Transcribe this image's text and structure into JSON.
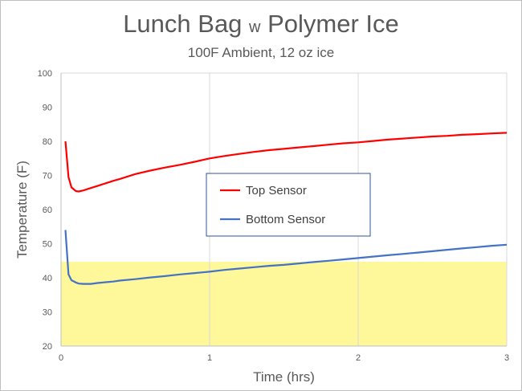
{
  "chart_data": {
    "type": "line",
    "title_main": "Lunch Bag",
    "title_small": "w",
    "title_end": "Polymer Ice",
    "subtitle": "100F Ambient, 12 oz ice",
    "xlabel": "Time (hrs)",
    "ylabel": "Temperature (F)",
    "xlim": [
      0,
      3
    ],
    "ylim": [
      20,
      100
    ],
    "x_ticks": [
      0,
      1,
      2,
      3
    ],
    "y_ticks": [
      20,
      30,
      40,
      50,
      60,
      70,
      80,
      90,
      100
    ],
    "grid": "vertical lines at x ticks",
    "shaded_band": {
      "y_from": 20,
      "y_to": 44.7,
      "color": "#fef89a"
    },
    "legend_position": "center",
    "series": [
      {
        "name": "Top Sensor",
        "color": "#ff0000",
        "x": [
          0.03,
          0.05,
          0.07,
          0.1,
          0.12,
          0.15,
          0.2,
          0.25,
          0.3,
          0.35,
          0.4,
          0.5,
          0.6,
          0.7,
          0.8,
          0.9,
          1.0,
          1.1,
          1.2,
          1.3,
          1.4,
          1.5,
          1.6,
          1.7,
          1.8,
          1.9,
          2.0,
          2.1,
          2.2,
          2.3,
          2.4,
          2.5,
          2.6,
          2.7,
          2.8,
          2.9,
          3.0
        ],
        "y": [
          80,
          69.5,
          66.5,
          65.4,
          65.3,
          65.6,
          66.3,
          67,
          67.7,
          68.4,
          69,
          70.4,
          71.4,
          72.3,
          73.1,
          74,
          75,
          75.7,
          76.3,
          76.9,
          77.4,
          77.8,
          78.2,
          78.6,
          79,
          79.4,
          79.7,
          80.1,
          80.5,
          80.8,
          81.1,
          81.4,
          81.6,
          81.9,
          82.1,
          82.3,
          82.5
        ]
      },
      {
        "name": "Bottom Sensor",
        "color": "#4472c4",
        "x": [
          0.03,
          0.05,
          0.07,
          0.1,
          0.12,
          0.15,
          0.2,
          0.25,
          0.3,
          0.35,
          0.4,
          0.5,
          0.6,
          0.7,
          0.8,
          0.9,
          1.0,
          1.1,
          1.2,
          1.3,
          1.4,
          1.5,
          1.6,
          1.7,
          1.8,
          1.9,
          2.0,
          2.1,
          2.2,
          2.3,
          2.4,
          2.5,
          2.6,
          2.7,
          2.8,
          2.9,
          3.0
        ],
        "y": [
          54,
          41,
          39.3,
          38.6,
          38.3,
          38.2,
          38.2,
          38.5,
          38.7,
          38.9,
          39.2,
          39.6,
          40.1,
          40.5,
          41,
          41.4,
          41.8,
          42.3,
          42.7,
          43.1,
          43.5,
          43.8,
          44.2,
          44.6,
          45,
          45.4,
          45.8,
          46.2,
          46.6,
          47,
          47.4,
          47.8,
          48.2,
          48.6,
          49,
          49.4,
          49.7
        ]
      }
    ]
  }
}
